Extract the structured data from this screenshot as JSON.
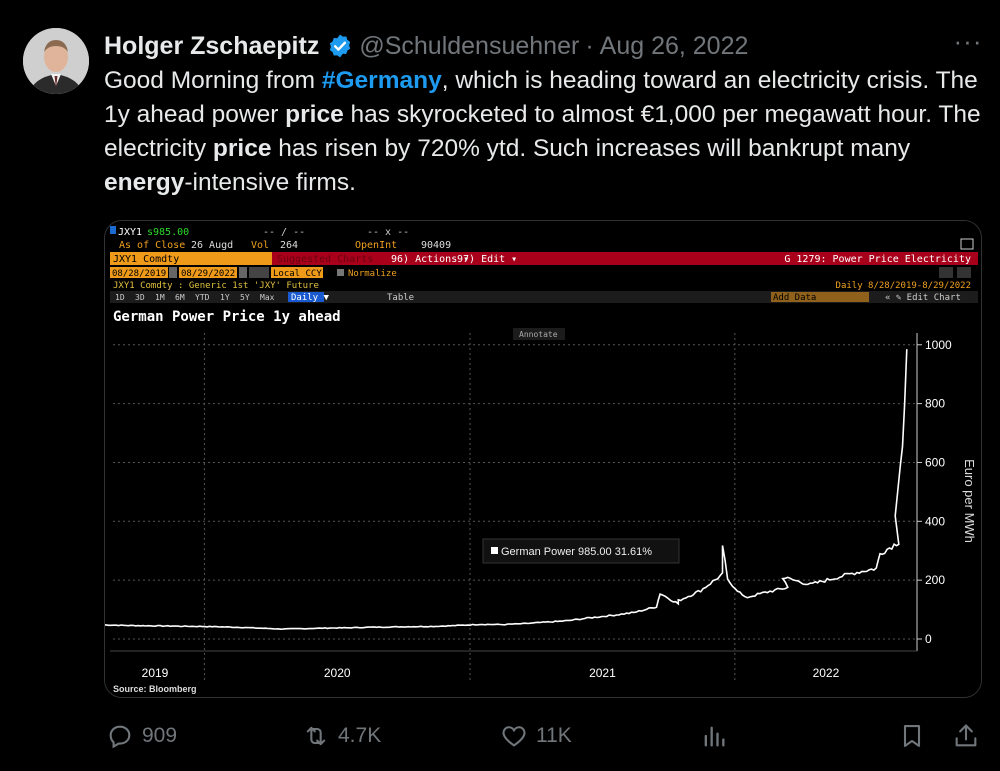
{
  "tweet": {
    "author_name": "Holger Zschaepitz",
    "handle": "@Schuldensuehner",
    "separator": "·",
    "date": "Aug 26, 2022",
    "text_parts": {
      "p1": "Good Morning from ",
      "hashtag": "#Germany",
      "p2": ", which is heading toward an electricity crisis. The 1y ahead power ",
      "b1": "price",
      "p3": " has skyrocketed to almost €1,000 per megawatt hour. The electricity ",
      "b2": "price",
      "p4": " has risen by 720% ytd. Such increases will bankrupt many ",
      "b3": "energy",
      "p5": "-intensive firms."
    }
  },
  "actions": {
    "replies": "909",
    "retweets": "4.7K",
    "likes": "11K"
  },
  "terminal": {
    "ticker": "JXY1",
    "last_price": "s985.00",
    "blank1": "-- / --",
    "blank2": "-- x --",
    "as_of_label": "As of Close",
    "as_of_date": "26 Augd",
    "vol_label": "Vol",
    "vol": "264",
    "openint_label": "OpenInt",
    "openint": "90409",
    "security": "JXY1 Comdty",
    "suggested": "Suggested Charts",
    "actions_btn": "96) Actions ▾",
    "edit_btn": "97) Edit ▾",
    "chart_code": "G 1279: Power Price Electricity",
    "date_from": "08/28/2019",
    "date_to": "08/29/2022",
    "currency": "Local CCY",
    "normalize": "Normalize",
    "security_desc": "JXY1 Comdty : Generic 1st 'JXY' Future",
    "periodicity_range": "Daily 8/28/2019-8/29/2022",
    "periods": [
      "1D",
      "3D",
      "1M",
      "6M",
      "YTD",
      "1Y",
      "5Y",
      "Max"
    ],
    "daily_btn": "Daily ▼",
    "table_btn": "Table",
    "add_data": "Add Data",
    "edit_chart": "« ✎ Edit Chart",
    "annotate": "Annotate",
    "source": "Source: Bloomberg"
  },
  "chart_data": {
    "type": "line",
    "title": "German Power Price 1y ahead",
    "ylabel": "Euro per MWh",
    "ylim": [
      0,
      1040
    ],
    "yticks": [
      0,
      200,
      400,
      600,
      800,
      1000
    ],
    "xticks": [
      "2019",
      "2020",
      "2021",
      "2022"
    ],
    "legend": "German Power 985.00  31.61%",
    "series": [
      {
        "name": "German Power",
        "color": "#ffffff",
        "x": [
          "2019-08",
          "2019-09",
          "2019-10",
          "2019-11",
          "2019-12",
          "2020-01",
          "2020-02",
          "2020-03",
          "2020-04",
          "2020-05",
          "2020-06",
          "2020-07",
          "2020-08",
          "2020-09",
          "2020-10",
          "2020-11",
          "2020-12",
          "2021-01",
          "2021-02",
          "2021-03",
          "2021-04",
          "2021-05",
          "2021-06",
          "2021-07",
          "2021-08",
          "2021-09",
          "2021-09-20",
          "2021-10",
          "2021-10-15",
          "2021-11",
          "2021-12",
          "2021-12-15",
          "2021-12-22",
          "2022-01",
          "2022-02",
          "2022-03",
          "2022-03-08",
          "2022-04",
          "2022-05",
          "2022-06",
          "2022-07",
          "2022-07-20",
          "2022-08",
          "2022-08-10",
          "2022-08-20",
          "2022-08-26"
        ],
        "values": [
          48,
          46,
          45,
          44,
          43,
          42,
          40,
          37,
          34,
          35,
          37,
          38,
          40,
          41,
          42,
          43,
          46,
          50,
          49,
          52,
          57,
          62,
          72,
          80,
          90,
          110,
          155,
          120,
          130,
          165,
          220,
          320,
          200,
          140,
          160,
          175,
          210,
          185,
          205,
          225,
          240,
          290,
          330,
          420,
          640,
          985
        ]
      }
    ]
  }
}
